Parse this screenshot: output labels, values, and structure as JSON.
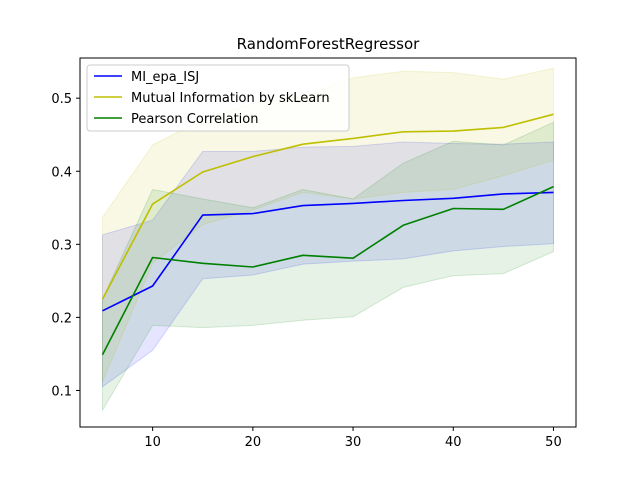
{
  "chart_data": {
    "type": "line",
    "title": "RandomForestRegressor",
    "xlabel": "",
    "ylabel": "",
    "x": [
      5,
      10,
      15,
      20,
      25,
      30,
      35,
      40,
      45,
      50
    ],
    "xlim": [
      2.75,
      52.25
    ],
    "ylim": [
      0.05,
      0.555
    ],
    "xticks": [
      10,
      20,
      30,
      40,
      50
    ],
    "yticks": [
      0.1,
      0.2,
      0.3,
      0.4,
      0.5
    ],
    "ytick_labels": [
      "0.1",
      "0.2",
      "0.3",
      "0.4",
      "0.5"
    ],
    "grid": false,
    "legend_position": "upper-left",
    "series": [
      {
        "name": "MI_epa_ISJ",
        "color": "#0000ff",
        "values": [
          0.209,
          0.243,
          0.34,
          0.342,
          0.353,
          0.356,
          0.36,
          0.363,
          0.369,
          0.371
        ],
        "upper": [
          0.313,
          0.333,
          0.427,
          0.427,
          0.433,
          0.434,
          0.44,
          0.438,
          0.437,
          0.44
        ],
        "lower": [
          0.105,
          0.155,
          0.253,
          0.258,
          0.273,
          0.277,
          0.28,
          0.291,
          0.297,
          0.301
        ]
      },
      {
        "name": "Mutual Information by skLearn",
        "color": "#bfbf00",
        "values": [
          0.225,
          0.355,
          0.399,
          0.42,
          0.437,
          0.445,
          0.454,
          0.455,
          0.46,
          0.478
        ],
        "upper": [
          0.337,
          0.436,
          0.471,
          0.493,
          0.503,
          0.528,
          0.537,
          0.535,
          0.526,
          0.541
        ],
        "lower": [
          0.112,
          0.274,
          0.327,
          0.347,
          0.371,
          0.362,
          0.371,
          0.375,
          0.394,
          0.415
        ]
      },
      {
        "name": "Pearson Correlation",
        "color": "#008000",
        "values": [
          0.149,
          0.282,
          0.274,
          0.269,
          0.285,
          0.281,
          0.326,
          0.349,
          0.348,
          0.379
        ],
        "upper": [
          0.225,
          0.375,
          0.362,
          0.35,
          0.375,
          0.362,
          0.411,
          0.441,
          0.436,
          0.467
        ],
        "lower": [
          0.073,
          0.189,
          0.186,
          0.189,
          0.196,
          0.201,
          0.241,
          0.257,
          0.26,
          0.29
        ]
      }
    ]
  }
}
